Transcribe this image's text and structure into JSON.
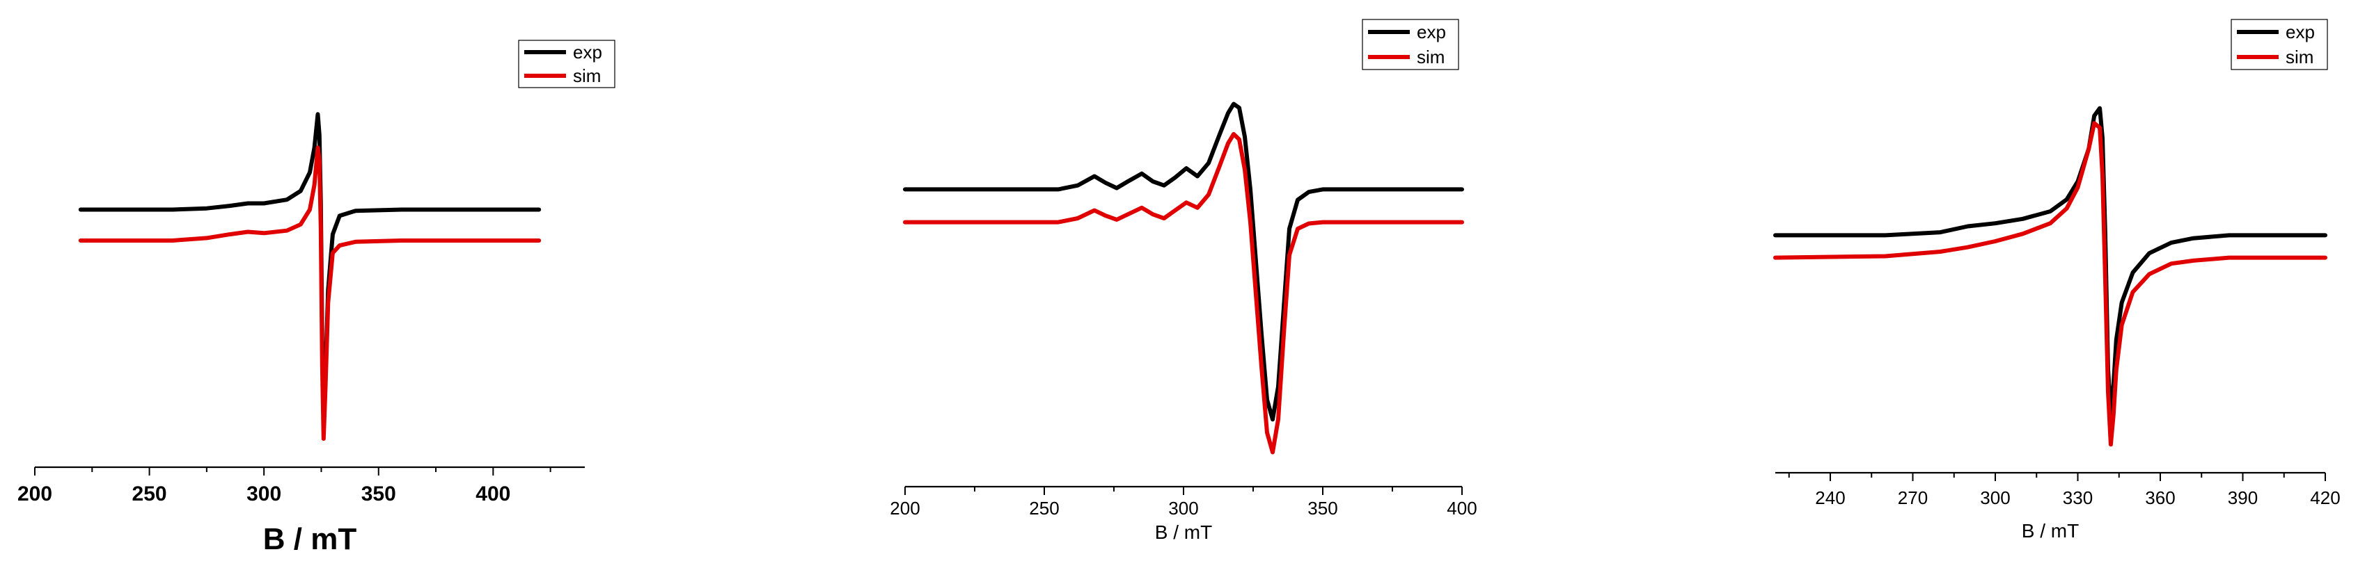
{
  "chart_data": [
    {
      "type": "line",
      "xlabel": "B / mT",
      "ylabel": "",
      "xlim": [
        200,
        440
      ],
      "xticks": [
        200,
        250,
        300,
        350,
        400
      ],
      "grid": false,
      "legend": "top-right",
      "series": [
        {
          "name": "exp",
          "color": "#000000",
          "x": [
            220,
            260,
            275,
            285,
            293,
            300,
            310,
            316,
            320,
            322,
            323.5,
            324.2,
            324.8,
            325.4,
            326,
            326.8,
            328,
            330,
            333,
            340,
            360,
            420
          ],
          "y": [
            0.45,
            0.45,
            0.46,
            0.48,
            0.5,
            0.5,
            0.53,
            0.6,
            0.75,
            0.95,
            1.22,
            1.05,
            0.5,
            -0.6,
            -1.25,
            -0.9,
            -0.2,
            0.25,
            0.4,
            0.44,
            0.45,
            0.45
          ]
        },
        {
          "name": "sim",
          "color": "#e00000",
          "x": [
            220,
            260,
            275,
            285,
            293,
            300,
            310,
            316,
            320,
            322,
            323.5,
            324.2,
            324.8,
            325.4,
            326,
            326.8,
            328,
            330,
            333,
            340,
            360,
            420
          ],
          "y": [
            0.2,
            0.2,
            0.22,
            0.25,
            0.27,
            0.26,
            0.28,
            0.33,
            0.45,
            0.65,
            0.95,
            0.85,
            0.3,
            -0.8,
            -1.4,
            -1.0,
            -0.3,
            0.1,
            0.16,
            0.19,
            0.2,
            0.2
          ]
        }
      ]
    },
    {
      "type": "line",
      "xlabel": "B / mT",
      "ylabel": "",
      "xlim": [
        200,
        400
      ],
      "xticks": [
        200,
        250,
        300,
        350,
        400
      ],
      "grid": false,
      "legend": "top-right",
      "series": [
        {
          "name": "exp",
          "color": "#000000",
          "x": [
            200,
            255,
            262,
            268,
            272,
            276,
            280,
            285,
            289,
            293,
            297,
            301,
            305,
            309,
            313,
            316,
            318,
            320,
            322,
            324,
            326,
            328,
            330,
            332,
            334,
            336,
            338,
            341,
            345,
            350,
            360,
            400
          ],
          "y": [
            0.3,
            0.3,
            0.33,
            0.4,
            0.35,
            0.31,
            0.36,
            0.42,
            0.36,
            0.33,
            0.39,
            0.46,
            0.4,
            0.5,
            0.72,
            0.88,
            0.95,
            0.92,
            0.7,
            0.3,
            -0.25,
            -0.8,
            -1.3,
            -1.45,
            -1.2,
            -0.6,
            0.0,
            0.22,
            0.28,
            0.3,
            0.3,
            0.3
          ]
        },
        {
          "name": "sim",
          "color": "#e00000",
          "x": [
            200,
            255,
            262,
            268,
            272,
            276,
            280,
            285,
            289,
            293,
            297,
            301,
            305,
            309,
            313,
            316,
            318,
            320,
            322,
            324,
            326,
            328,
            330,
            332,
            334,
            336,
            338,
            341,
            345,
            350,
            360,
            400
          ],
          "y": [
            0.05,
            0.05,
            0.08,
            0.14,
            0.1,
            0.07,
            0.11,
            0.16,
            0.11,
            0.08,
            0.14,
            0.2,
            0.16,
            0.26,
            0.48,
            0.65,
            0.72,
            0.68,
            0.45,
            0.05,
            -0.5,
            -1.05,
            -1.55,
            -1.7,
            -1.45,
            -0.8,
            -0.2,
            0.0,
            0.04,
            0.05,
            0.05,
            0.05
          ]
        }
      ]
    },
    {
      "type": "line",
      "xlabel": "B / mT",
      "ylabel": "",
      "xlim": [
        220,
        420
      ],
      "xticks": [
        240,
        270,
        300,
        330,
        360,
        390,
        420
      ],
      "grid": false,
      "legend": "top-right",
      "series": [
        {
          "name": "exp",
          "color": "#000000",
          "x": [
            220,
            260,
            280,
            290,
            300,
            310,
            320,
            326,
            330,
            334,
            336,
            338,
            339,
            340,
            341,
            342,
            343,
            344,
            346,
            350,
            356,
            364,
            372,
            385,
            420
          ],
          "y": [
            0.2,
            0.2,
            0.22,
            0.26,
            0.28,
            0.31,
            0.36,
            0.44,
            0.56,
            0.78,
            1.0,
            1.05,
            0.85,
            0.2,
            -0.7,
            -1.0,
            -0.8,
            -0.5,
            -0.25,
            -0.05,
            0.08,
            0.15,
            0.18,
            0.2,
            0.2
          ]
        },
        {
          "name": "sim",
          "color": "#e00000",
          "x": [
            220,
            260,
            280,
            290,
            300,
            310,
            320,
            326,
            330,
            334,
            336,
            338,
            339,
            340,
            341,
            342,
            343,
            344,
            346,
            350,
            356,
            364,
            372,
            385,
            420
          ],
          "y": [
            0.05,
            0.06,
            0.09,
            0.12,
            0.16,
            0.21,
            0.28,
            0.38,
            0.52,
            0.78,
            0.95,
            0.92,
            0.6,
            -0.1,
            -0.85,
            -1.2,
            -1.0,
            -0.7,
            -0.4,
            -0.18,
            -0.06,
            0.01,
            0.03,
            0.05,
            0.05
          ]
        }
      ]
    }
  ]
}
